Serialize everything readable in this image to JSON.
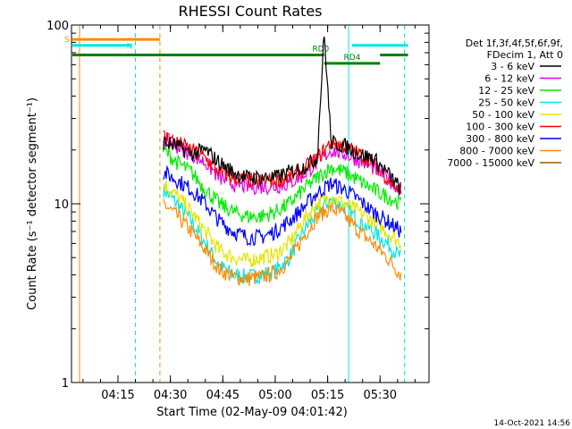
{
  "chart_data": {
    "type": "line",
    "title": "RHESSI Count Rates",
    "xlabel": "Start Time (02-May-09 04:01:42)",
    "ylabel": "Count Rate (s⁻¹ detector segment⁻¹)",
    "y_scale": "log",
    "ylim": [
      1,
      100
    ],
    "xlim": [
      "04:01:42",
      "05:44:00"
    ],
    "x_ticks": [
      "04:15",
      "04:30",
      "04:45",
      "05:00",
      "05:15",
      "05:30"
    ],
    "y_ticks": [
      "1",
      "10",
      "100"
    ],
    "grid": false,
    "legend_position": "right",
    "legend_header": [
      "Det 1f,3f,4f,5f,6f,9f,",
      "FDecim 1, Att 0"
    ],
    "series": [
      {
        "name": "3 - 6 keV",
        "color": "#000000",
        "x": [
          "04:28",
          "04:32",
          "04:36",
          "04:40",
          "04:44",
          "04:48",
          "04:52",
          "04:56",
          "05:00",
          "05:04",
          "05:08",
          "05:12",
          "05:14",
          "05:16",
          "05:20",
          "05:24",
          "05:28",
          "05:32",
          "05:36"
        ],
        "values": [
          22,
          21,
          19,
          20,
          17,
          15,
          14,
          14,
          14,
          15,
          16,
          18,
          90,
          22,
          21,
          19,
          18,
          15,
          12
        ]
      },
      {
        "name": "6 - 12 keV",
        "color": "#e600e6",
        "x": [
          "04:28",
          "04:32",
          "04:36",
          "04:40",
          "04:44",
          "04:48",
          "04:52",
          "04:56",
          "05:00",
          "05:04",
          "05:08",
          "05:12",
          "05:16",
          "05:20",
          "05:24",
          "05:28",
          "05:32",
          "05:36"
        ],
        "values": [
          23,
          21,
          19,
          17,
          14,
          13,
          12.5,
          12.5,
          12.5,
          13,
          14.5,
          17,
          20,
          19,
          17.5,
          16,
          14,
          12
        ]
      },
      {
        "name": "12 - 25 keV",
        "color": "#00ee00",
        "x": [
          "04:28",
          "04:32",
          "04:36",
          "04:40",
          "04:44",
          "04:48",
          "04:52",
          "04:56",
          "05:00",
          "05:04",
          "05:08",
          "05:12",
          "05:16",
          "05:20",
          "05:24",
          "05:28",
          "05:32",
          "05:36"
        ],
        "values": [
          20,
          17,
          15,
          12,
          10,
          9,
          8.5,
          8.5,
          9,
          10,
          12,
          14,
          16,
          15,
          13.5,
          12,
          11,
          10
        ]
      },
      {
        "name": "25 - 50 keV",
        "color": "#00e5e5",
        "x": [
          "04:28",
          "04:32",
          "04:36",
          "04:40",
          "04:44",
          "04:48",
          "04:52",
          "04:56",
          "05:00",
          "05:04",
          "05:08",
          "05:12",
          "05:16",
          "05:20",
          "05:24",
          "05:28",
          "05:32",
          "05:36"
        ],
        "values": [
          12,
          10,
          8,
          6,
          4.5,
          4,
          3.9,
          4,
          4.2,
          5,
          7,
          9,
          10.5,
          9.5,
          8,
          7,
          6,
          5
        ]
      },
      {
        "name": "50 - 100 keV",
        "color": "#e5e500",
        "x": [
          "04:28",
          "04:32",
          "04:36",
          "04:40",
          "04:44",
          "04:48",
          "04:52",
          "04:56",
          "05:00",
          "05:04",
          "05:08",
          "05:12",
          "05:16",
          "05:20",
          "05:24",
          "05:28",
          "05:32",
          "05:36"
        ],
        "values": [
          13,
          11,
          9,
          7,
          5.5,
          5,
          4.8,
          5,
          5.2,
          6,
          8,
          10,
          11,
          10,
          9,
          8,
          7,
          6
        ]
      },
      {
        "name": "100 - 300 keV",
        "color": "#ff0000",
        "x": [
          "04:28",
          "04:32",
          "04:36",
          "04:40",
          "04:44",
          "04:48",
          "04:52",
          "04:56",
          "05:00",
          "05:04",
          "05:08",
          "05:12",
          "05:16",
          "05:20",
          "05:24",
          "05:28",
          "05:32",
          "05:36"
        ],
        "values": [
          24,
          22,
          20,
          18,
          15,
          14,
          13.5,
          13.5,
          13.5,
          14,
          15.5,
          18,
          22,
          21,
          19,
          17,
          14,
          11.5
        ]
      },
      {
        "name": "300 - 800 keV",
        "color": "#0000ff",
        "x": [
          "04:28",
          "04:32",
          "04:36",
          "04:40",
          "04:44",
          "04:48",
          "04:52",
          "04:56",
          "05:00",
          "05:04",
          "05:08",
          "05:12",
          "05:16",
          "05:20",
          "05:24",
          "05:28",
          "05:32",
          "05:36"
        ],
        "values": [
          15,
          13.5,
          12,
          10,
          8,
          7,
          6.5,
          6.5,
          7,
          8,
          9.5,
          11.5,
          13,
          12,
          10.5,
          9,
          8,
          7
        ]
      },
      {
        "name": "800 - 7000 keV",
        "color": "#ff8c00",
        "x": [
          "04:28",
          "04:32",
          "04:36",
          "04:40",
          "04:44",
          "04:48",
          "04:52",
          "04:56",
          "05:00",
          "05:04",
          "05:08",
          "05:12",
          "05:16",
          "05:20",
          "05:24",
          "05:28",
          "05:32",
          "05:36"
        ],
        "values": [
          10,
          8.5,
          7,
          5.5,
          4.3,
          3.9,
          3.8,
          3.9,
          4.1,
          4.8,
          6.5,
          8.5,
          9.5,
          8.5,
          7,
          6,
          5,
          4
        ]
      },
      {
        "name": "7000 - 15000 keV",
        "color": "#a05a00",
        "x": [],
        "values": []
      }
    ],
    "vertical_markers": [
      {
        "time": "04:04:00",
        "color": "#ff8c00",
        "style": "solid"
      },
      {
        "time": "04:20:00",
        "color": "#00e5e5",
        "style": "dashed"
      },
      {
        "time": "04:27:00",
        "color": "#ff8c00",
        "style": "dashed"
      },
      {
        "time": "05:21:00",
        "color": "#00e5e5",
        "style": "solid"
      },
      {
        "time": "05:37:00",
        "color": "#00e5e5",
        "style": "dashed"
      }
    ],
    "flag_bars": [
      {
        "label": "S",
        "color": "#ff8c00",
        "start": "04:01:42",
        "end": "04:27:00",
        "y": 83
      },
      {
        "label": "N",
        "color": "#00e5e5",
        "start": "04:01:42",
        "end": "04:19:00",
        "y": 77
      },
      {
        "label": "",
        "color": "#00e5e5",
        "start": "05:22:00",
        "end": "05:38:00",
        "y": 77
      },
      {
        "label": "",
        "color": "#008000",
        "start": "04:01:42",
        "end": "05:12:00",
        "y": 68
      },
      {
        "label": "RD0",
        "color": "#008000",
        "start": "05:12:00",
        "end": "05:14:00",
        "y": 68
      },
      {
        "label": "",
        "color": "#008000",
        "start": "05:30:00",
        "end": "05:38:00",
        "y": 68
      },
      {
        "label": "RD4",
        "color": "#008000",
        "start": "05:14:00",
        "end": "05:30:00",
        "y": 61
      }
    ],
    "footer_timestamp": "14-Oct-2021 14:56"
  }
}
